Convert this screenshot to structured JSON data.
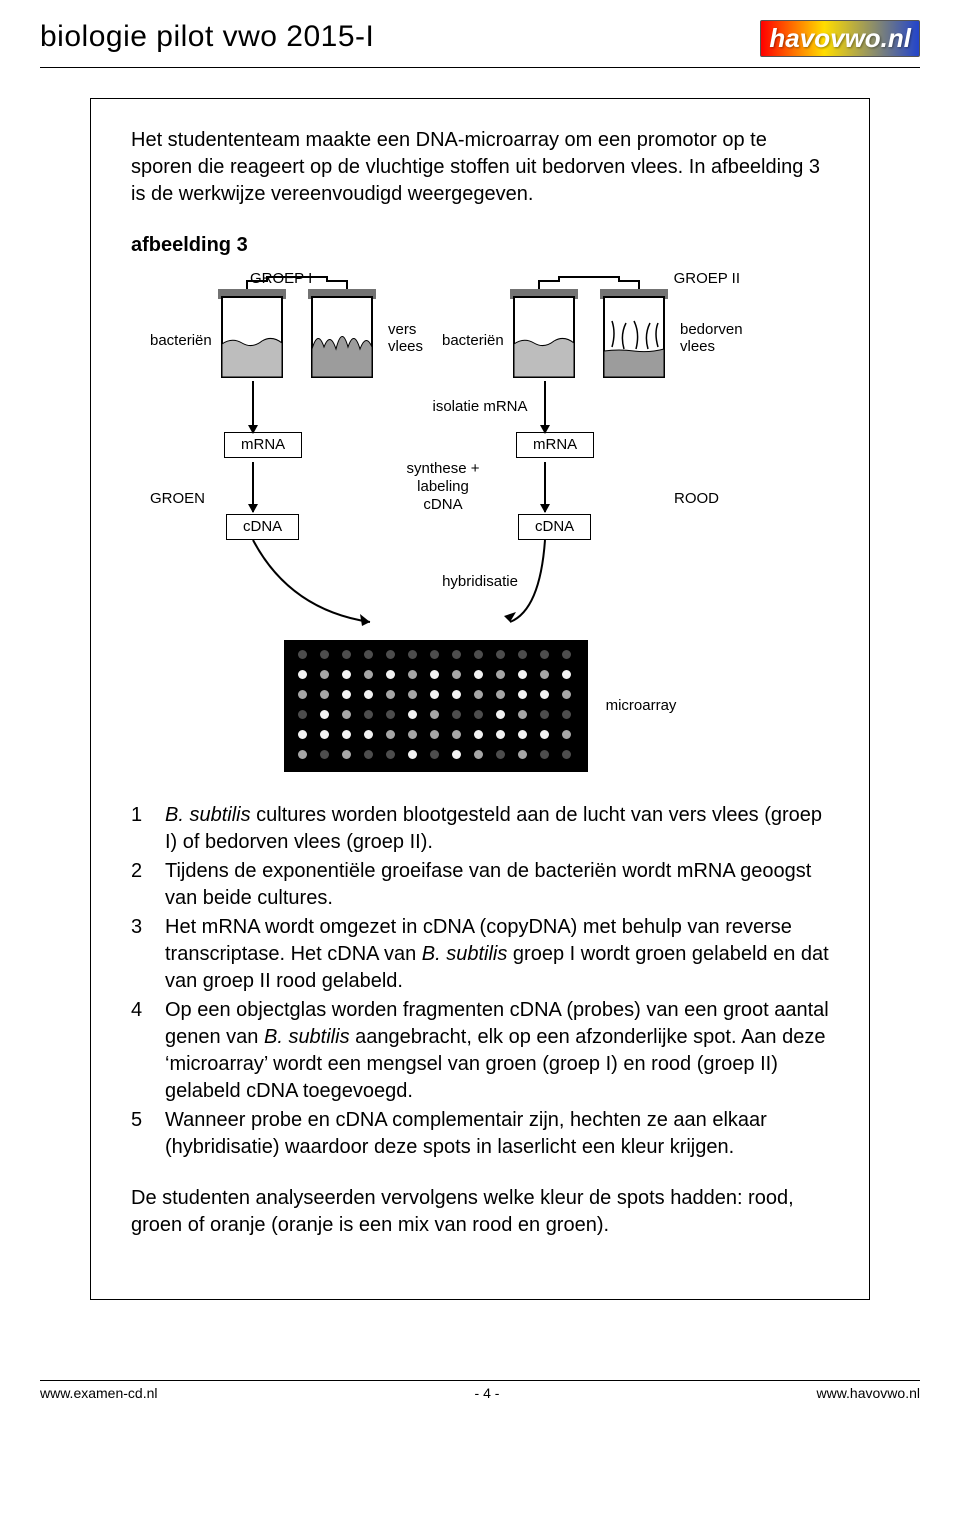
{
  "header": {
    "title": "biologie pilot  vwo  2015-I",
    "logo_text": "havovwo.nl"
  },
  "intro": "Het studententeam maakte een DNA-microarray om een promotor op te sporen die reageert op de vluchtige stoffen uit bedorven vlees. In afbeelding 3 is de werkwijze vereenvoudigd weergegeven.",
  "figure": {
    "title": "afbeelding 3",
    "group1": "GROEP I",
    "group2": "GROEP II",
    "label_bacterien": "bacteriën",
    "label_vers_vlees_1": "vers",
    "label_vers_vlees_2": "vlees",
    "label_bedorven_1": "bedorven",
    "label_bedorven_2": "vlees",
    "isolatie": "isolatie mRNA",
    "mrna": "mRNA",
    "groen": "GROEN",
    "rood": "ROOD",
    "cdna": "cDNA",
    "synthese_1": "synthese + labeling",
    "synthese_2": "cDNA",
    "hybridisatie": "hybridisatie",
    "microarray_label": "microarray",
    "jar_fill": "#bdbdbd",
    "microarray_rows": 6,
    "microarray_cols": 13,
    "dot_shades": [
      "#4d4d4d",
      "#808080",
      "#a6a6a6",
      "#cccccc",
      "#f2f2f2",
      "#ffffff"
    ]
  },
  "steps": [
    {
      "n": "1",
      "pre": "",
      "it1": "B. subtilis",
      "mid": " cultures worden blootgesteld aan de lucht van vers vlees (groep I) of bedorven vlees (groep II).",
      "it2": "",
      "post": ""
    },
    {
      "n": "2",
      "pre": "Tijdens de exponentiële groeifase van de bacteriën wordt mRNA geoogst van beide cultures.",
      "it1": "",
      "mid": "",
      "it2": "",
      "post": ""
    },
    {
      "n": "3",
      "pre": "Het mRNA wordt omgezet in cDNA (copyDNA) met behulp van reverse transcriptase. Het cDNA van ",
      "it1": "B. subtilis",
      "mid": " groep I wordt groen gelabeld en dat van groep II rood gelabeld.",
      "it2": "",
      "post": ""
    },
    {
      "n": "4",
      "pre": "Op een objectglas worden fragmenten cDNA (probes) van een groot aantal genen van ",
      "it1": "B. subtilis",
      "mid": " aangebracht, elk op een afzonderlijke spot. Aan deze ‘microarray’ wordt een mengsel van groen (groep I) en rood (groep II) gelabeld cDNA toegevoegd.",
      "it2": "",
      "post": ""
    },
    {
      "n": "5",
      "pre": "Wanneer probe en cDNA complementair zijn, hechten ze aan elkaar (hybridisatie) waardoor deze spots in laserlicht een kleur krijgen.",
      "it1": "",
      "mid": "",
      "it2": "",
      "post": ""
    }
  ],
  "closing": "De studenten analyseerden vervolgens welke kleur de spots hadden: rood, groen of oranje (oranje is een mix van rood en groen).",
  "footer": {
    "left": "www.examen-cd.nl",
    "page": "- 4 -",
    "right": "www.havovwo.nl"
  }
}
